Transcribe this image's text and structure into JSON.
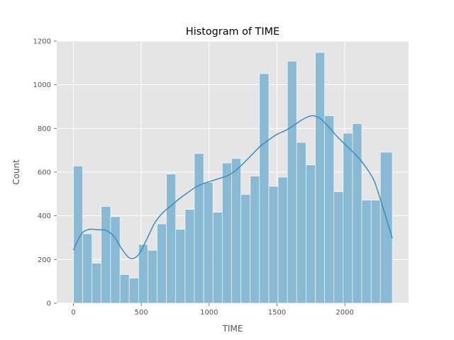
{
  "chart_data": {
    "type": "bar",
    "title": "Histogram of TIME",
    "xlabel": "TIME",
    "ylabel": "Count",
    "xlim": [
      -123,
      2470
    ],
    "ylim": [
      0,
      1200
    ],
    "x_ticks": [
      0,
      500,
      1000,
      1500,
      2000
    ],
    "y_ticks": [
      0,
      200,
      400,
      600,
      800,
      1000,
      1200
    ],
    "grid": true,
    "background": "#e5e5e5",
    "bar_color": "#8ab9d4",
    "kde_color": "#3a8dc0",
    "bins": [
      {
        "x0": 0,
        "x1": 68,
        "count": 628
      },
      {
        "x0": 68,
        "x1": 137,
        "count": 318
      },
      {
        "x0": 137,
        "x1": 205,
        "count": 183
      },
      {
        "x0": 205,
        "x1": 274,
        "count": 443
      },
      {
        "x0": 274,
        "x1": 343,
        "count": 396
      },
      {
        "x0": 343,
        "x1": 411,
        "count": 131
      },
      {
        "x0": 411,
        "x1": 480,
        "count": 115
      },
      {
        "x0": 480,
        "x1": 548,
        "count": 269
      },
      {
        "x0": 548,
        "x1": 617,
        "count": 242
      },
      {
        "x0": 617,
        "x1": 685,
        "count": 363
      },
      {
        "x0": 685,
        "x1": 754,
        "count": 591
      },
      {
        "x0": 754,
        "x1": 823,
        "count": 338
      },
      {
        "x0": 823,
        "x1": 891,
        "count": 429
      },
      {
        "x0": 891,
        "x1": 960,
        "count": 685
      },
      {
        "x0": 960,
        "x1": 1028,
        "count": 553
      },
      {
        "x0": 1028,
        "x1": 1097,
        "count": 416
      },
      {
        "x0": 1097,
        "x1": 1165,
        "count": 642
      },
      {
        "x0": 1165,
        "x1": 1234,
        "count": 662
      },
      {
        "x0": 1234,
        "x1": 1303,
        "count": 498
      },
      {
        "x0": 1303,
        "x1": 1371,
        "count": 582
      },
      {
        "x0": 1371,
        "x1": 1440,
        "count": 1051
      },
      {
        "x0": 1440,
        "x1": 1508,
        "count": 535
      },
      {
        "x0": 1508,
        "x1": 1577,
        "count": 577
      },
      {
        "x0": 1577,
        "x1": 1645,
        "count": 1108
      },
      {
        "x0": 1645,
        "x1": 1714,
        "count": 736
      },
      {
        "x0": 1714,
        "x1": 1783,
        "count": 633
      },
      {
        "x0": 1783,
        "x1": 1851,
        "count": 1148
      },
      {
        "x0": 1851,
        "x1": 1920,
        "count": 858
      },
      {
        "x0": 1920,
        "x1": 1988,
        "count": 510
      },
      {
        "x0": 1988,
        "x1": 2057,
        "count": 778
      },
      {
        "x0": 2057,
        "x1": 2125,
        "count": 822
      },
      {
        "x0": 2125,
        "x1": 2194,
        "count": 472
      },
      {
        "x0": 2194,
        "x1": 2262,
        "count": 472
      },
      {
        "x0": 2262,
        "x1": 2350,
        "count": 691
      }
    ],
    "kde": {
      "x": [
        0,
        60,
        120,
        180,
        240,
        300,
        360,
        420,
        480,
        540,
        600,
        660,
        720,
        780,
        840,
        900,
        960,
        1020,
        1080,
        1140,
        1200,
        1260,
        1320,
        1380,
        1440,
        1500,
        1560,
        1620,
        1680,
        1740,
        1780,
        1820,
        1880,
        1940,
        2000,
        2060,
        2120,
        2180,
        2220,
        2260,
        2300,
        2350
      ],
      "y": [
        243,
        318,
        338,
        336,
        333,
        305,
        245,
        205,
        222,
        292,
        368,
        415,
        446,
        478,
        505,
        531,
        548,
        560,
        572,
        585,
        610,
        645,
        683,
        720,
        748,
        773,
        790,
        812,
        838,
        856,
        857,
        845,
        808,
        765,
        728,
        692,
        652,
        600,
        555,
        480,
        400,
        297
      ]
    }
  }
}
